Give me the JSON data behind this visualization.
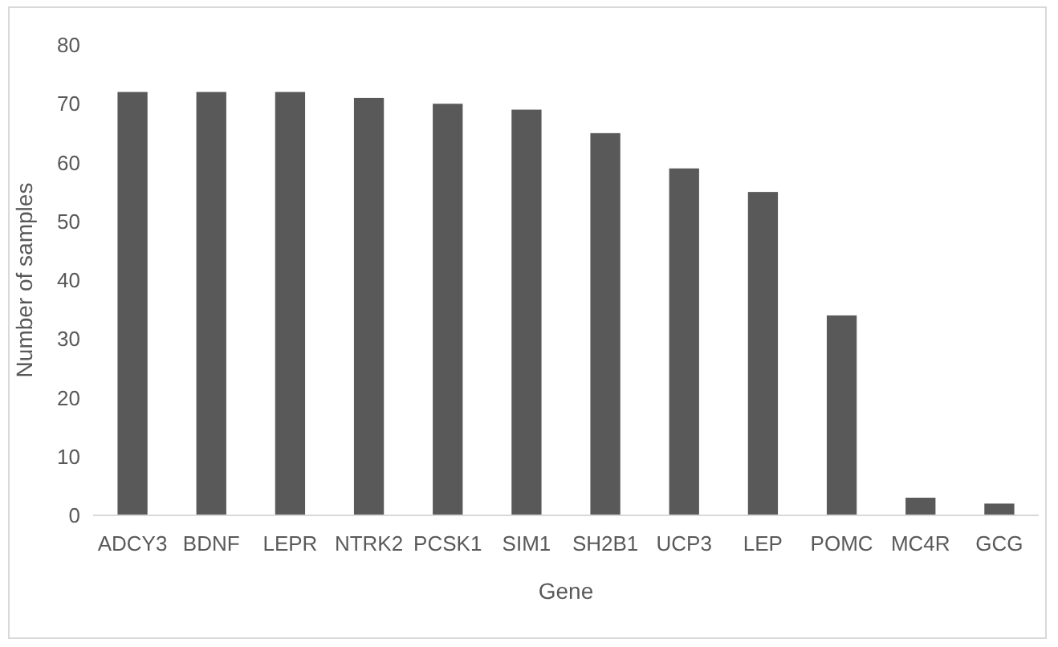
{
  "chart_data": {
    "type": "bar",
    "xlabel": "Gene",
    "ylabel": "Number of samples",
    "categories": [
      "ADCY3",
      "BDNF",
      "LEPR",
      "NTRK2",
      "PCSK1",
      "SIM1",
      "SH2B1",
      "UCP3",
      "LEP",
      "POMC",
      "MC4R",
      "GCG"
    ],
    "values": [
      72,
      72,
      72,
      71,
      70,
      69,
      65,
      59,
      55,
      34,
      3,
      2
    ],
    "color": "#595959",
    "ylim": [
      0,
      80
    ],
    "yticks": [
      0,
      10,
      20,
      30,
      40,
      50,
      60,
      70,
      80
    ],
    "grid": false
  }
}
